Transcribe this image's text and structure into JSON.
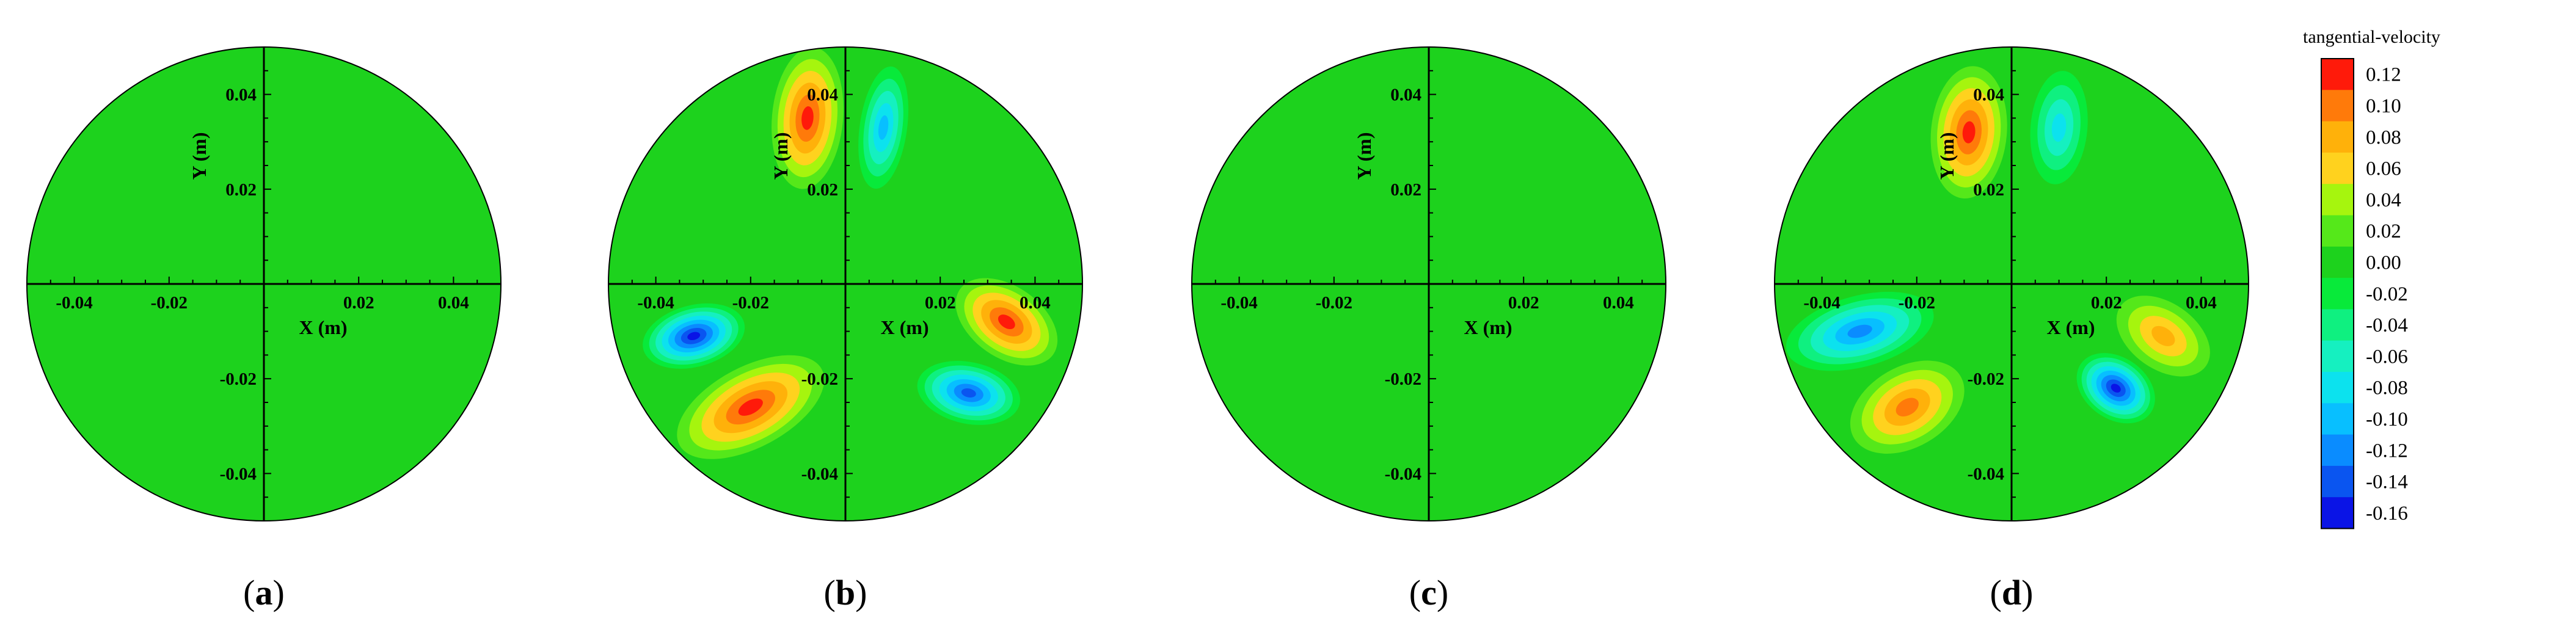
{
  "chart_data": {
    "type": "heatmap",
    "panels": [
      {
        "label": "(a)",
        "label_parts": {
          "open": "(",
          "letter": "a",
          "close": ")"
        },
        "xlabel": "X (m)",
        "ylabel": "Y (m)",
        "xlim": [
          -0.05,
          0.05
        ],
        "ylim": [
          -0.05,
          0.05
        ],
        "x_ticks": [
          "-0.04",
          "-0.02",
          "0.02",
          "0.04"
        ],
        "y_ticks": [
          "0.04",
          "0.02",
          "-0.02",
          "-0.04"
        ],
        "tick_style": "bold",
        "field": "uniform",
        "uniform_value": 0.0,
        "blobs": []
      },
      {
        "label": "(b)",
        "label_parts": {
          "open": "(",
          "letter": "b",
          "close": ")"
        },
        "xlabel": "X (m)",
        "ylabel": "Y (m)",
        "xlim": [
          -0.05,
          0.05
        ],
        "ylim": [
          -0.05,
          0.05
        ],
        "x_ticks": [
          "-0.04",
          "-0.02",
          "0.02",
          "0.04"
        ],
        "y_ticks": [
          "0.04",
          "0.02",
          "-0.02",
          "-0.04"
        ],
        "tick_style": "bold",
        "field": "blobs",
        "blobs": [
          {
            "x": -0.008,
            "y": 0.035,
            "rx": 0.0075,
            "ry": 0.015,
            "rot": 5,
            "value": 0.12
          },
          {
            "x": 0.008,
            "y": 0.033,
            "rx": 0.005,
            "ry": 0.013,
            "rot": 8,
            "value": -0.1
          },
          {
            "x": -0.032,
            "y": -0.011,
            "rx": 0.011,
            "ry": 0.0065,
            "rot": -15,
            "value": -0.16
          },
          {
            "x": -0.02,
            "y": -0.026,
            "rx": 0.017,
            "ry": 0.0085,
            "rot": -28,
            "value": 0.12
          },
          {
            "x": 0.034,
            "y": -0.008,
            "rx": 0.012,
            "ry": 0.0075,
            "rot": 35,
            "value": 0.12
          },
          {
            "x": 0.026,
            "y": -0.023,
            "rx": 0.011,
            "ry": 0.0065,
            "rot": 12,
            "value": -0.14
          }
        ]
      },
      {
        "label": "(c)",
        "label_parts": {
          "open": "(",
          "letter": "c",
          "close": ")"
        },
        "xlabel": "X (m)",
        "ylabel": "Y (m)",
        "xlim": [
          -0.05,
          0.05
        ],
        "ylim": [
          -0.05,
          0.05
        ],
        "x_ticks": [
          "-0.04",
          "-0.02",
          "0.02",
          "0.04"
        ],
        "y_ticks": [
          "0.04",
          "0.02",
          "-0.02",
          "-0.04"
        ],
        "tick_style": "bold",
        "field": "uniform",
        "uniform_value": 0.0,
        "blobs": []
      },
      {
        "label": "(d)",
        "label_parts": {
          "open": "(",
          "letter": "d",
          "close": ")"
        },
        "xlabel": "X (m)",
        "ylabel": "Y (m)",
        "xlim": [
          -0.05,
          0.05
        ],
        "ylim": [
          -0.05,
          0.05
        ],
        "x_ticks": [
          "-0.04",
          "-0.02",
          "0.02",
          "0.04"
        ],
        "y_ticks": [
          "0.04",
          "0.02",
          "-0.02",
          "-0.04"
        ],
        "tick_style": "bold",
        "field": "blobs",
        "blobs": [
          {
            "x": -0.009,
            "y": 0.032,
            "rx": 0.008,
            "ry": 0.014,
            "rot": 5,
            "value": 0.12
          },
          {
            "x": 0.01,
            "y": 0.033,
            "rx": 0.006,
            "ry": 0.012,
            "rot": 5,
            "value": -0.08
          },
          {
            "x": -0.032,
            "y": -0.01,
            "rx": 0.016,
            "ry": 0.0075,
            "rot": -15,
            "value": -0.12
          },
          {
            "x": -0.022,
            "y": -0.026,
            "rx": 0.013,
            "ry": 0.0085,
            "rot": -30,
            "value": 0.1
          },
          {
            "x": 0.032,
            "y": -0.011,
            "rx": 0.011,
            "ry": 0.007,
            "rot": 35,
            "value": 0.08
          },
          {
            "x": 0.022,
            "y": -0.022,
            "rx": 0.009,
            "ry": 0.0065,
            "rot": 35,
            "value": -0.16
          }
        ]
      }
    ],
    "colorbar": {
      "title": "tangential-velocity",
      "levels": [
        "0.12",
        "0.10",
        "0.08",
        "0.06",
        "0.04",
        "0.02",
        "0.00",
        "-0.02",
        "-0.04",
        "-0.06",
        "-0.08",
        "-0.10",
        "-0.12",
        "-0.14",
        "-0.16"
      ],
      "colors": [
        "#ff1a0a",
        "#ff7a0a",
        "#ffb10a",
        "#ffd21e",
        "#a6f50e",
        "#55e81a",
        "#1dd21d",
        "#08ea3a",
        "#0ff080",
        "#15f0c0",
        "#0ce2ee",
        "#08bfff",
        "#0a8cff",
        "#0a55f0",
        "#0a14e6"
      ]
    }
  }
}
